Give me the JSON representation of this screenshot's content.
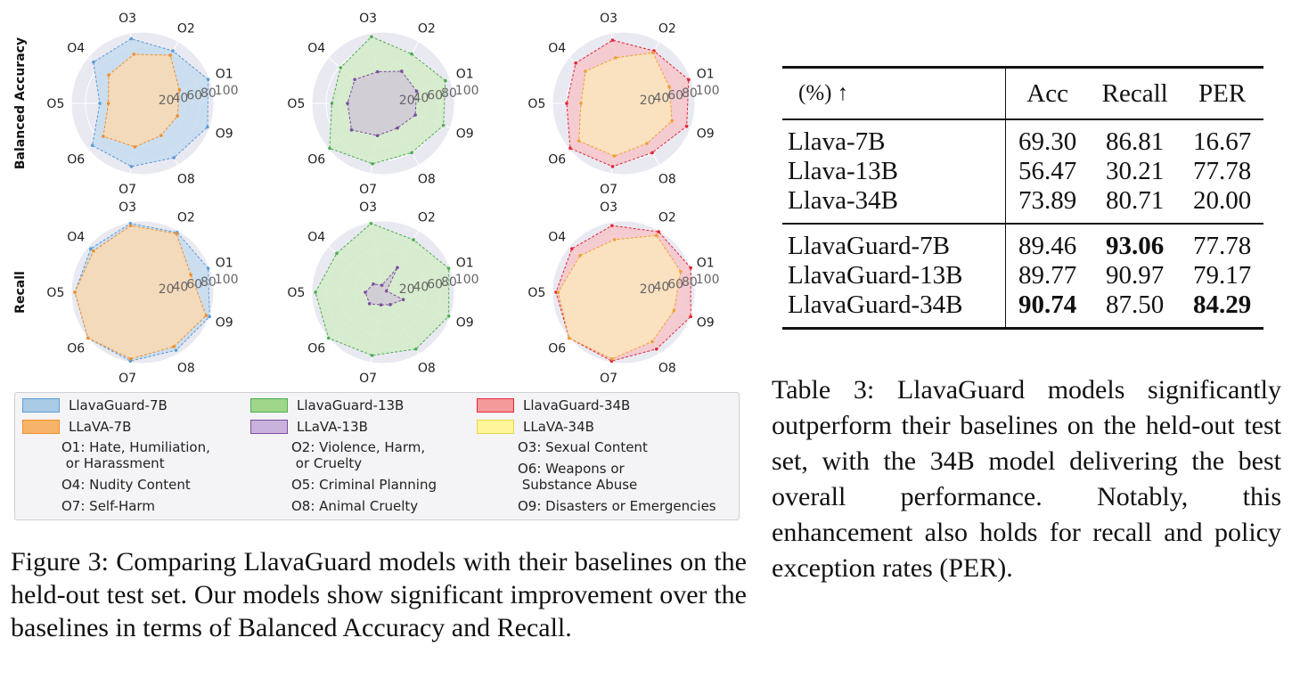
{
  "figure": {
    "row_labels": [
      "Balanced Accuracy",
      "Recall"
    ],
    "axis_tick_labels": [
      "20",
      "40",
      "60",
      "80",
      "100"
    ],
    "category_labels": [
      "O1",
      "O2",
      "O3",
      "O4",
      "O5",
      "O6",
      "O7",
      "O8",
      "O9"
    ],
    "legend": {
      "models": [
        {
          "label": "LlavaGuard-7B",
          "color": "#6fa8dc"
        },
        {
          "label": "LLaVA-7B",
          "color": "#f6a94a"
        },
        {
          "label": "LlavaGuard-13B",
          "color": "#8fd07a"
        },
        {
          "label": "LLaVA-13B",
          "color": "#b89bd0"
        },
        {
          "label": "LlavaGuard-34B",
          "color": "#f08080"
        },
        {
          "label": "LLaVA-34B",
          "color": "#fff27a"
        }
      ],
      "categories": [
        "O1: Hate, Humiliation,\n or Harassment",
        "O2: Violence, Harm,\n or Cruelty",
        "O3: Sexual Content",
        "O4: Nudity Content",
        "O5: Criminal Planning",
        "O6: Weapons or\n Substance Abuse",
        "O7: Self-Harm",
        "O8: Animal Cruelty",
        "O9: Disasters or Emergencies"
      ]
    },
    "caption": "Figure 3: Comparing LlavaGuard models with their baselines on the held-out test set. Our models show significant improvement over the baselines in terms of Balanced Accuracy and Recall."
  },
  "chart_data": [
    {
      "type": "radar",
      "row": "Balanced Accuracy",
      "categories": [
        "O1",
        "O2",
        "O3",
        "O4",
        "O5",
        "O6",
        "O7",
        "O8",
        "O9"
      ],
      "rlim": [
        0,
        100
      ],
      "series": [
        {
          "name": "LlavaGuard-7B",
          "color": "#5b9bd5",
          "fill": "#c6dcef",
          "values": [
            98,
            85,
            92,
            90,
            60,
            92,
            90,
            88,
            97
          ]
        },
        {
          "name": "LLaVA-7B",
          "color": "#f28e2b",
          "fill": "#f7d9b5",
          "values": [
            55,
            78,
            70,
            62,
            48,
            72,
            62,
            52,
            52
          ]
        }
      ]
    },
    {
      "type": "radar",
      "row": "Balanced Accuracy",
      "categories": [
        "O1",
        "O2",
        "O3",
        "O4",
        "O5",
        "O6",
        "O7",
        "O8",
        "O9"
      ],
      "rlim": [
        0,
        100
      ],
      "series": [
        {
          "name": "LlavaGuard-13B",
          "color": "#4caf50",
          "fill": "#d3ebc8",
          "values": [
            93,
            80,
            95,
            78,
            72,
            98,
            86,
            80,
            90
          ]
        },
        {
          "name": "LLaVA-13B",
          "color": "#7a4fa0",
          "fill": "#d2cbd6",
          "values": [
            50,
            52,
            45,
            52,
            50,
            58,
            46,
            40,
            48
          ]
        }
      ]
    },
    {
      "type": "radar",
      "row": "Balanced Accuracy",
      "categories": [
        "O1",
        "O2",
        "O3",
        "O4",
        "O5",
        "O6",
        "O7",
        "O8",
        "O9"
      ],
      "rlim": [
        0,
        100
      ],
      "series": [
        {
          "name": "LlavaGuard-34B",
          "color": "#e32636",
          "fill": "#f6c6ca",
          "values": [
            97,
            85,
            90,
            88,
            80,
            98,
            90,
            80,
            94
          ]
        },
        {
          "name": "LLaVA-34B",
          "color": "#f0a030",
          "fill": "#fbe3be",
          "values": [
            68,
            82,
            65,
            70,
            60,
            82,
            75,
            65,
            72
          ]
        }
      ]
    },
    {
      "type": "radar",
      "row": "Recall",
      "categories": [
        "O1",
        "O2",
        "O3",
        "O4",
        "O5",
        "O6",
        "O7",
        "O8",
        "O9"
      ],
      "rlim": [
        0,
        100
      ],
      "series": [
        {
          "name": "LlavaGuard-7B",
          "color": "#5b9bd5",
          "fill": "#c6dcef",
          "values": [
            98,
            97,
            98,
            95,
            95,
            100,
            98,
            94,
            100
          ]
        },
        {
          "name": "LLaVA-7B",
          "color": "#f28e2b",
          "fill": "#f7d9b5",
          "values": [
            72,
            95,
            95,
            90,
            95,
            100,
            95,
            88,
            95
          ]
        }
      ]
    },
    {
      "type": "radar",
      "row": "Recall",
      "categories": [
        "O1",
        "O2",
        "O3",
        "O4",
        "O5",
        "O6",
        "O7",
        "O8",
        "O9"
      ],
      "rlim": [
        0,
        100
      ],
      "series": [
        {
          "name": "LlavaGuard-13B",
          "color": "#4caf50",
          "fill": "#d3ebc8",
          "values": [
            98,
            85,
            98,
            85,
            95,
            100,
            90,
            92,
            98
          ]
        },
        {
          "name": "LLaVA-13B",
          "color": "#7a4fa0",
          "fill": "#d2cbd6",
          "values": [
            5,
            40,
            10,
            18,
            25,
            25,
            18,
            20,
            30
          ]
        }
      ]
    },
    {
      "type": "radar",
      "row": "Recall",
      "categories": [
        "O1",
        "O2",
        "O3",
        "O4",
        "O5",
        "O6",
        "O7",
        "O8",
        "O9"
      ],
      "rlim": [
        0,
        100
      ],
      "series": [
        {
          "name": "LlavaGuard-34B",
          "color": "#e32636",
          "fill": "#f6c6ca",
          "values": [
            100,
            98,
            95,
            95,
            95,
            100,
            98,
            92,
            100
          ]
        },
        {
          "name": "LLaVA-34B",
          "color": "#f0a030",
          "fill": "#fbe3be",
          "values": [
            85,
            92,
            75,
            80,
            92,
            100,
            95,
            80,
            75
          ]
        }
      ]
    }
  ],
  "table": {
    "header": [
      "(%) ↑",
      "Acc",
      "Recall",
      "PER"
    ],
    "group1": [
      {
        "model": "Llava-7B",
        "acc": "69.30",
        "recall": "86.81",
        "per": "16.67"
      },
      {
        "model": "Llava-13B",
        "acc": "56.47",
        "recall": "30.21",
        "per": "77.78"
      },
      {
        "model": "Llava-34B",
        "acc": "73.89",
        "recall": "80.71",
        "per": "20.00"
      }
    ],
    "group2": [
      {
        "model": "LlavaGuard-7B",
        "acc": "89.46",
        "recall": "93.06",
        "per": "77.78"
      },
      {
        "model": "LlavaGuard-13B",
        "acc": "89.77",
        "recall": "90.97",
        "per": "79.17"
      },
      {
        "model": "LlavaGuard-34B",
        "acc": "90.74",
        "recall": "87.50",
        "per": "84.29"
      }
    ],
    "caption": "Table 3: LlavaGuard models significantly outperform their baselines on the held-out test set, with the 34B model delivering the best overall performance. Notably, this enhancement also holds for recall and policy exception rates (PER)."
  }
}
